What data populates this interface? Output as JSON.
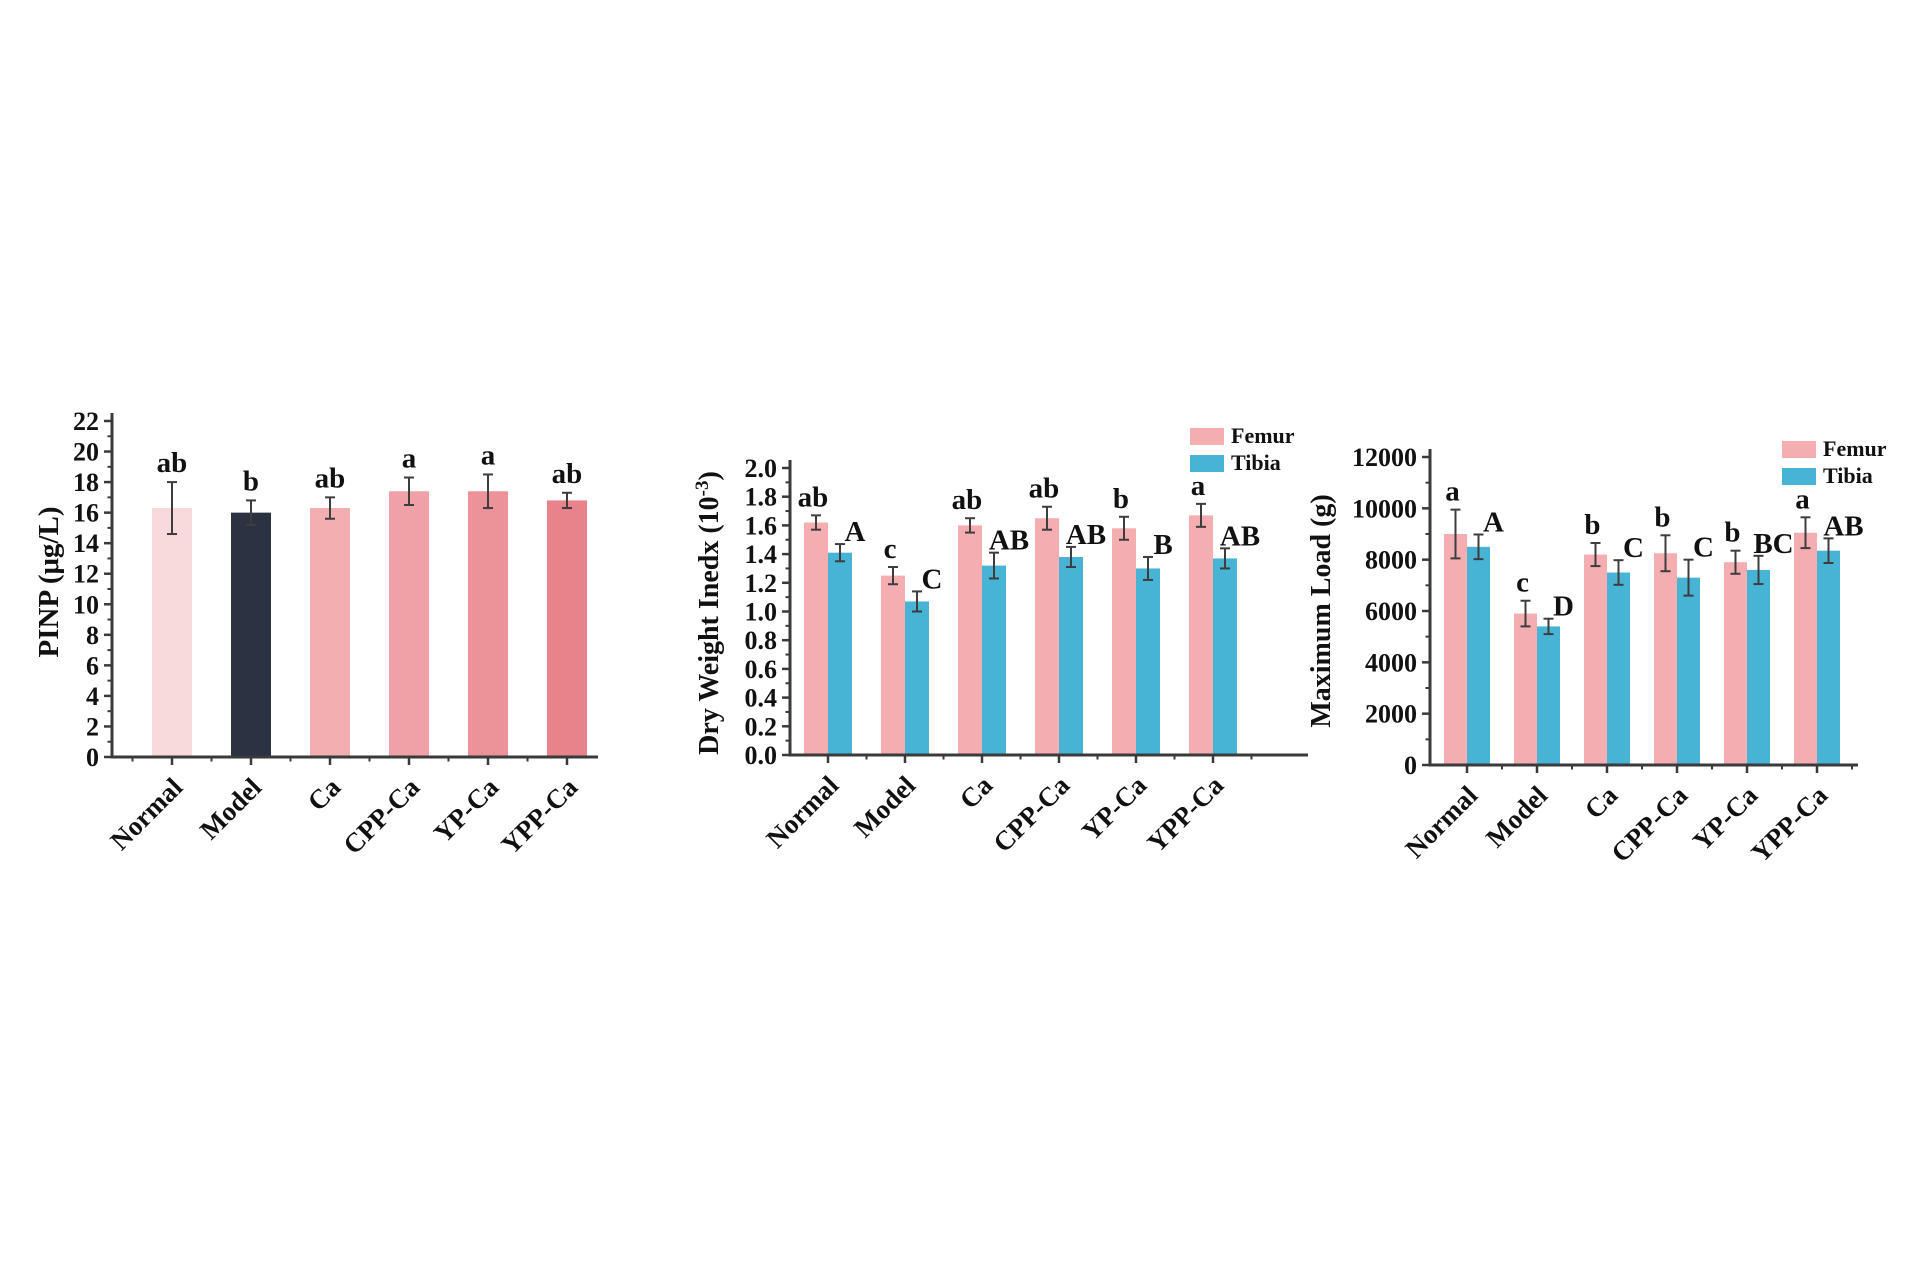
{
  "figure": {
    "background": "#ffffff",
    "text_color": "#111111",
    "axis_color": "#3a3a3a",
    "error_bar_color": "#3d3d3d",
    "femur_color": "#f4adb1",
    "tibia_color": "#47b4d6",
    "model_bar_color": "#2b3342"
  },
  "chart_data": [
    {
      "type": "bar",
      "title": "",
      "xlabel": "",
      "ylabel": "PINP (μg/L)",
      "ylim": [
        0,
        22
      ],
      "ytick_step": 2,
      "yticks": [
        "0",
        "2",
        "4",
        "6",
        "8",
        "10",
        "12",
        "14",
        "16",
        "18",
        "20",
        "22"
      ],
      "categories": [
        "Normal",
        "Model",
        "Ca",
        "CPP-Ca",
        "YP-Ca",
        "YPP-Ca"
      ],
      "grid": false,
      "legend": null,
      "series": [
        {
          "name": "PINP",
          "bar_colors": [
            "#f8d9dc",
            "#2b3342",
            "#f3aeb2",
            "#f0a1a7",
            "#ec939a",
            "#e8838b"
          ],
          "values": [
            16.3,
            16.0,
            16.3,
            17.4,
            17.4,
            16.8
          ],
          "errors": [
            1.7,
            0.8,
            0.7,
            0.9,
            1.1,
            0.5
          ],
          "letters": [
            "ab",
            "b",
            "ab",
            "a",
            "a",
            "ab"
          ]
        }
      ]
    },
    {
      "type": "bar",
      "title": "",
      "xlabel": "",
      "ylabel": "Dry Weight Inedx (10-3)",
      "ylabel_parts": [
        {
          "text": "Dry Weight Inedx (10"
        },
        {
          "text": "-3",
          "super": true
        },
        {
          "text": ")"
        }
      ],
      "ylim": [
        0,
        2.0
      ],
      "ytick_step": 0.2,
      "yticks": [
        "0.0",
        "0.2",
        "0.4",
        "0.6",
        "0.8",
        "1.0",
        "1.2",
        "1.4",
        "1.6",
        "1.8",
        "2.0"
      ],
      "categories": [
        "Normal",
        "Model",
        "Ca",
        "CPP-Ca",
        "YP-Ca",
        "YPP-Ca"
      ],
      "grid": false,
      "legend": {
        "position": "top-right",
        "labels": [
          "Femur",
          "Tibia"
        ]
      },
      "series": [
        {
          "name": "Femur",
          "color": "#f4adb1",
          "values": [
            1.62,
            1.25,
            1.6,
            1.65,
            1.58,
            1.67
          ],
          "errors": [
            0.05,
            0.06,
            0.05,
            0.08,
            0.08,
            0.08
          ],
          "letters": [
            "ab",
            "c",
            "ab",
            "ab",
            "b",
            "a"
          ]
        },
        {
          "name": "Tibia",
          "color": "#47b4d6",
          "values": [
            1.41,
            1.07,
            1.32,
            1.38,
            1.3,
            1.37
          ],
          "errors": [
            0.06,
            0.07,
            0.09,
            0.07,
            0.08,
            0.07
          ],
          "letters": [
            "A",
            "C",
            "AB",
            "AB",
            "B",
            "AB"
          ]
        }
      ]
    },
    {
      "type": "bar",
      "title": "",
      "xlabel": "",
      "ylabel": "Maximum Load (g)",
      "ylim": [
        0,
        12000
      ],
      "ytick_step": 2000,
      "yticks": [
        "0",
        "2000",
        "4000",
        "6000",
        "8000",
        "10000",
        "12000"
      ],
      "categories": [
        "Normal",
        "Model",
        "Ca",
        "CPP-Ca",
        "YP-Ca",
        "YPP-Ca"
      ],
      "grid": false,
      "legend": {
        "position": "top-right",
        "labels": [
          "Femur",
          "Tibia"
        ]
      },
      "series": [
        {
          "name": "Femur",
          "color": "#f4adb1",
          "values": [
            9000,
            5900,
            8200,
            8250,
            7900,
            9050
          ],
          "errors": [
            950,
            500,
            450,
            700,
            450,
            600
          ],
          "letters": [
            "a",
            "c",
            "b",
            "b",
            "b",
            "a"
          ]
        },
        {
          "name": "Tibia",
          "color": "#47b4d6",
          "values": [
            8500,
            5400,
            7500,
            7300,
            7600,
            8350
          ],
          "errors": [
            480,
            300,
            480,
            700,
            550,
            480
          ],
          "letters": [
            "A",
            "D",
            "C",
            "C",
            "BC",
            "AB"
          ]
        }
      ]
    }
  ]
}
